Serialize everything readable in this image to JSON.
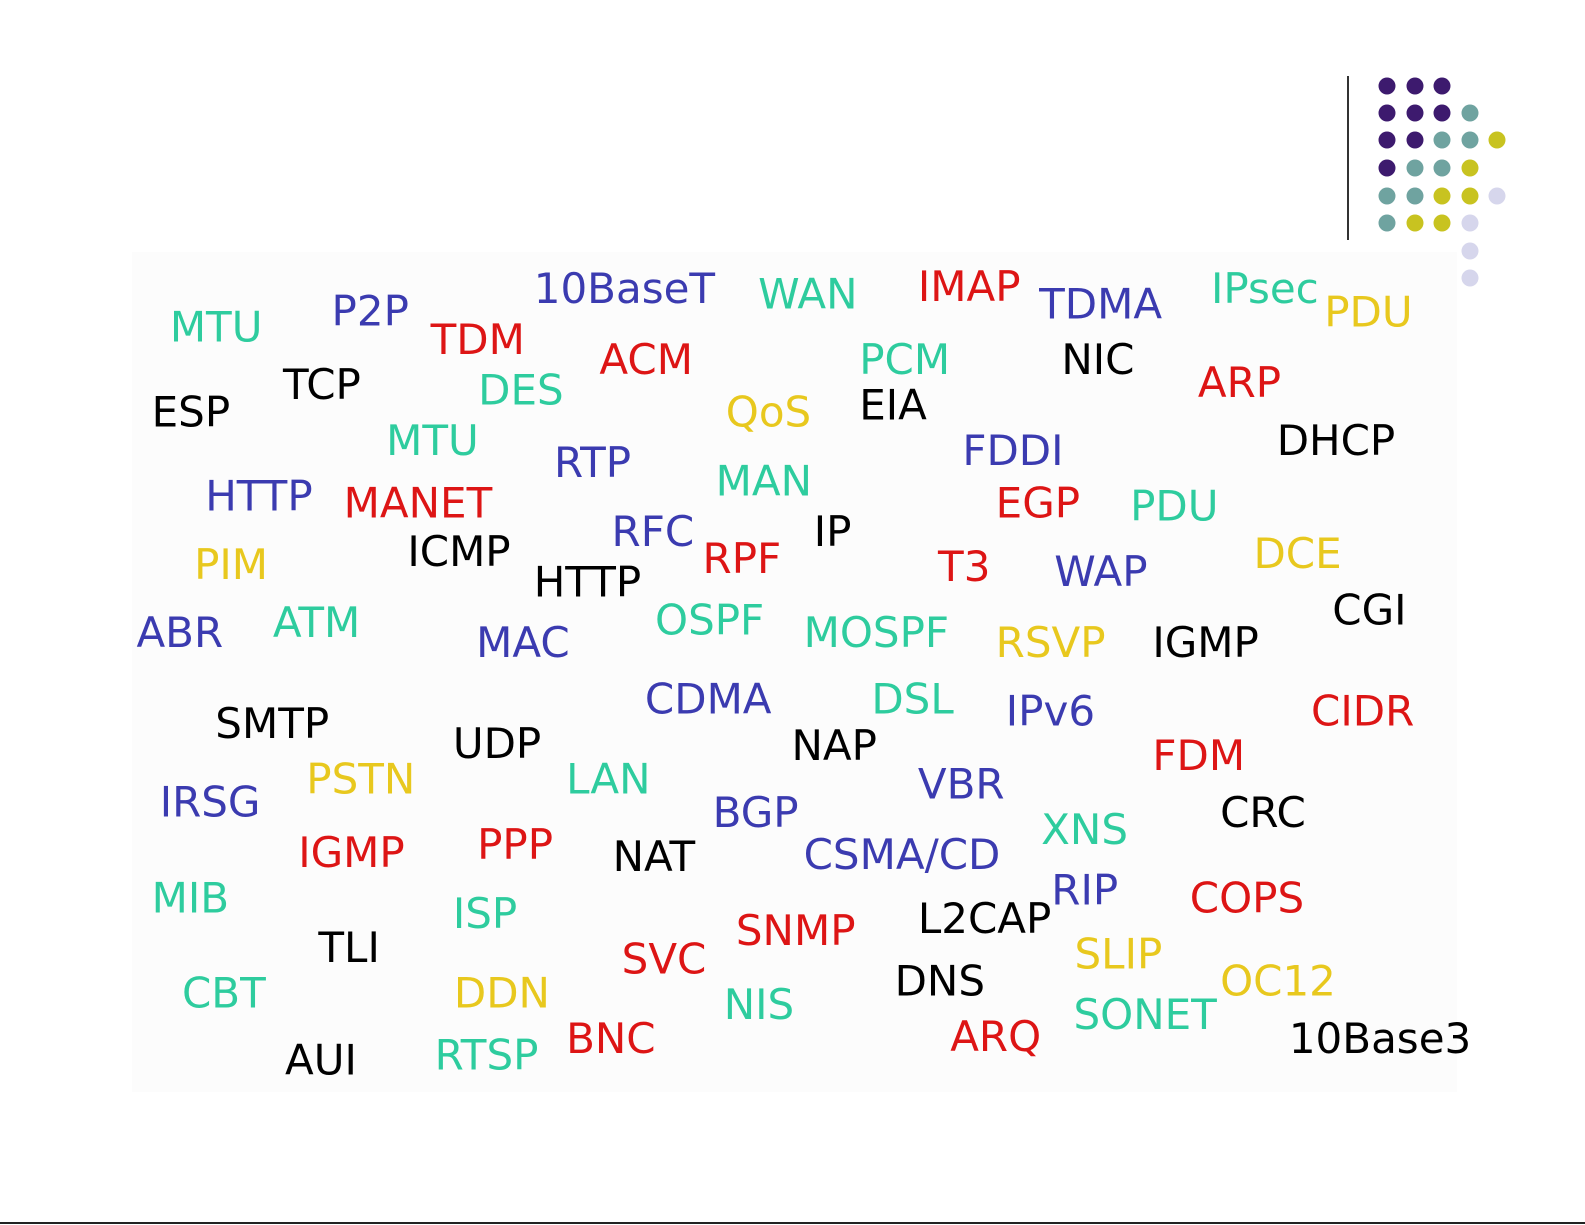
{
  "words": [
    {
      "text": "MTU",
      "color": "#2ecc9e"
    },
    {
      "text": "P2P",
      "color": "#3b3bb0"
    },
    {
      "text": "10BaseT",
      "color": "#3b3bb0"
    },
    {
      "text": "WAN",
      "color": "#2ecc9e"
    },
    {
      "text": "IMAP",
      "color": "#dd1515"
    },
    {
      "text": "TDMA",
      "color": "#3b3bb0"
    },
    {
      "text": "IPsec",
      "color": "#2ecc9e"
    },
    {
      "text": "PDU",
      "color": "#e8c81e"
    },
    {
      "text": "TDM",
      "color": "#dd1515"
    },
    {
      "text": "ACM",
      "color": "#dd1515"
    },
    {
      "text": "PCM",
      "color": "#2ecc9e"
    },
    {
      "text": "NIC",
      "color": "#000000"
    },
    {
      "text": "ESP",
      "color": "#000000"
    },
    {
      "text": "TCP",
      "color": "#000000"
    },
    {
      "text": "DES",
      "color": "#2ecc9e"
    },
    {
      "text": "QoS",
      "color": "#e8c81e"
    },
    {
      "text": "EIA",
      "color": "#000000"
    },
    {
      "text": "ARP",
      "color": "#dd1515"
    },
    {
      "text": "MTU",
      "color": "#2ecc9e"
    },
    {
      "text": "RTP",
      "color": "#3b3bb0"
    },
    {
      "text": "FDDI",
      "color": "#3b3bb0"
    },
    {
      "text": "DHCP",
      "color": "#000000"
    },
    {
      "text": "HTTP",
      "color": "#3b3bb0"
    },
    {
      "text": "MANET",
      "color": "#dd1515"
    },
    {
      "text": "MAN",
      "color": "#2ecc9e"
    },
    {
      "text": "EGP",
      "color": "#dd1515"
    },
    {
      "text": "PDU",
      "color": "#2ecc9e"
    },
    {
      "text": "RFC",
      "color": "#3b3bb0"
    },
    {
      "text": "IP",
      "color": "#000000"
    },
    {
      "text": "PIM",
      "color": "#e8c81e"
    },
    {
      "text": "ICMP",
      "color": "#000000"
    },
    {
      "text": "HTTP",
      "color": "#000000"
    },
    {
      "text": "RPF",
      "color": "#dd1515"
    },
    {
      "text": "T3",
      "color": "#dd1515"
    },
    {
      "text": "WAP",
      "color": "#3b3bb0"
    },
    {
      "text": "DCE",
      "color": "#e8c81e"
    },
    {
      "text": "ABR",
      "color": "#3b3bb0"
    },
    {
      "text": "ATM",
      "color": "#2ecc9e"
    },
    {
      "text": "MAC",
      "color": "#3b3bb0"
    },
    {
      "text": "OSPF",
      "color": "#2ecc9e"
    },
    {
      "text": "MOSPF",
      "color": "#2ecc9e"
    },
    {
      "text": "RSVP",
      "color": "#e8c81e"
    },
    {
      "text": "IGMP",
      "color": "#000000"
    },
    {
      "text": "CGI",
      "color": "#000000"
    },
    {
      "text": "CDMA",
      "color": "#3b3bb0"
    },
    {
      "text": "DSL",
      "color": "#2ecc9e"
    },
    {
      "text": "IPv6",
      "color": "#3b3bb0"
    },
    {
      "text": "CIDR",
      "color": "#dd1515"
    },
    {
      "text": "SMTP",
      "color": "#000000"
    },
    {
      "text": "UDP",
      "color": "#000000"
    },
    {
      "text": "NAP",
      "color": "#000000"
    },
    {
      "text": "FDM",
      "color": "#dd1515"
    },
    {
      "text": "LAN",
      "color": "#2ecc9e"
    },
    {
      "text": "VBR",
      "color": "#3b3bb0"
    },
    {
      "text": "IRSG",
      "color": "#3b3bb0"
    },
    {
      "text": "PSTN",
      "color": "#e8c81e"
    },
    {
      "text": "BGP",
      "color": "#3b3bb0"
    },
    {
      "text": "XNS",
      "color": "#2ecc9e"
    },
    {
      "text": "CRC",
      "color": "#000000"
    },
    {
      "text": "IGMP",
      "color": "#dd1515"
    },
    {
      "text": "PPP",
      "color": "#dd1515"
    },
    {
      "text": "NAT",
      "color": "#000000"
    },
    {
      "text": "CSMA/CD",
      "color": "#3b3bb0"
    },
    {
      "text": "MIB",
      "color": "#2ecc9e"
    },
    {
      "text": "ISP",
      "color": "#2ecc9e"
    },
    {
      "text": "RIP",
      "color": "#3b3bb0"
    },
    {
      "text": "COPS",
      "color": "#dd1515"
    },
    {
      "text": "L2CAP",
      "color": "#000000"
    },
    {
      "text": "SNMP",
      "color": "#dd1515"
    },
    {
      "text": "SVC",
      "color": "#dd1515"
    },
    {
      "text": "TLI",
      "color": "#000000"
    },
    {
      "text": "SLIP",
      "color": "#e8c81e"
    },
    {
      "text": "DNS",
      "color": "#000000"
    },
    {
      "text": "CBT",
      "color": "#2ecc9e"
    },
    {
      "text": "DDN",
      "color": "#e8c81e"
    },
    {
      "text": "NIS",
      "color": "#2ecc9e"
    },
    {
      "text": "OC12",
      "color": "#e8c81e"
    },
    {
      "text": "SONET",
      "color": "#2ecc9e"
    },
    {
      "text": "ARQ",
      "color": "#dd1515"
    },
    {
      "text": "BNC",
      "color": "#dd1515"
    },
    {
      "text": "10Base3",
      "color": "#000000"
    },
    {
      "text": "AUI",
      "color": "#000000"
    },
    {
      "text": "RTSP",
      "color": "#2ecc9e"
    }
  ]
}
